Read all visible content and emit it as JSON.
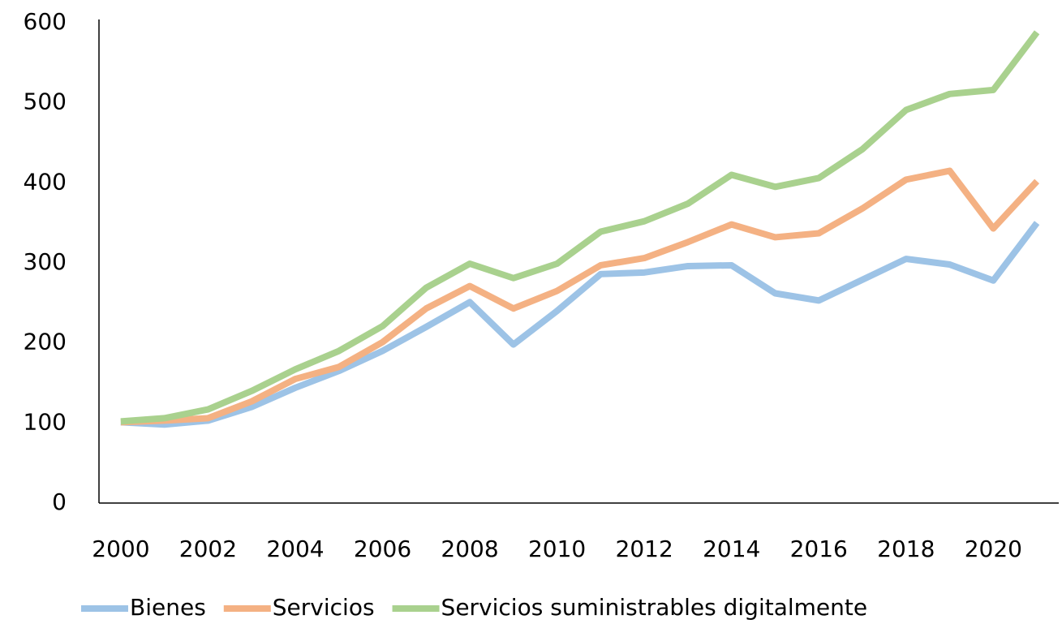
{
  "chart_data": {
    "type": "line",
    "x": [
      2000,
      2001,
      2002,
      2003,
      2004,
      2005,
      2006,
      2007,
      2008,
      2009,
      2010,
      2011,
      2012,
      2013,
      2014,
      2015,
      2016,
      2017,
      2018,
      2019,
      2020,
      2021
    ],
    "series": [
      {
        "name": "Bienes",
        "color": "#9dc3e6",
        "values": [
          101,
          98,
          103,
          120,
          144,
          165,
          190,
          220,
          251,
          198,
          240,
          286,
          288,
          296,
          297,
          262,
          253,
          279,
          305,
          298,
          278,
          350
        ]
      },
      {
        "name": "Servicios",
        "color": "#f4b183",
        "values": [
          101,
          103,
          106,
          127,
          155,
          170,
          201,
          243,
          271,
          243,
          265,
          297,
          306,
          326,
          348,
          332,
          337,
          368,
          404,
          415,
          343,
          402
        ]
      },
      {
        "name": "Servicios suministrables digitalmente",
        "color": "#a9d18e",
        "values": [
          102,
          106,
          117,
          140,
          167,
          190,
          221,
          269,
          299,
          281,
          299,
          339,
          352,
          374,
          410,
          395,
          406,
          442,
          491,
          511,
          516,
          588
        ]
      }
    ],
    "xlim": [
      1999.5,
      2021.5
    ],
    "xticks": [
      2000,
      2002,
      2004,
      2006,
      2008,
      2010,
      2012,
      2014,
      2016,
      2018,
      2020
    ],
    "ylim": [
      0,
      600
    ],
    "yticks": [
      0,
      100,
      200,
      300,
      400,
      500,
      600
    ],
    "grid": false,
    "legend": "bottom"
  }
}
